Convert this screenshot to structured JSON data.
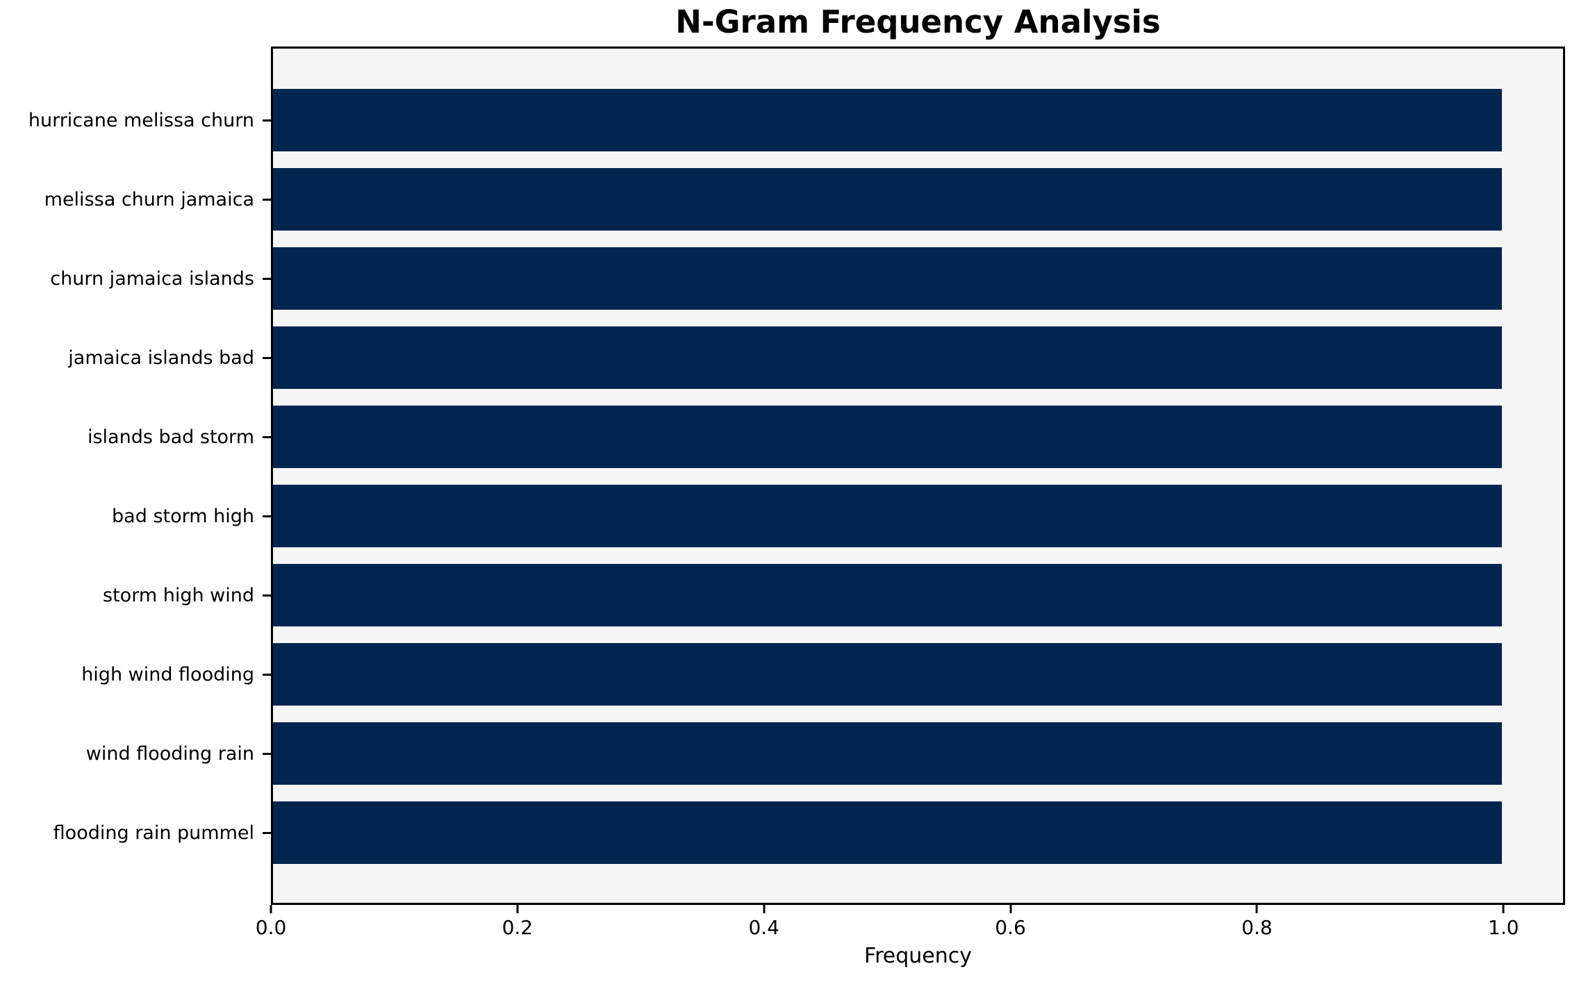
{
  "chart_data": {
    "type": "bar",
    "orientation": "horizontal",
    "title": "N-Gram Frequency Analysis",
    "xlabel": "Frequency",
    "ylabel": "",
    "categories": [
      "hurricane melissa churn",
      "melissa churn jamaica",
      "churn jamaica islands",
      "jamaica islands bad",
      "islands bad storm",
      "bad storm high",
      "storm high wind",
      "high wind flooding",
      "wind flooding rain",
      "flooding rain pummel"
    ],
    "values": [
      1.0,
      1.0,
      1.0,
      1.0,
      1.0,
      1.0,
      1.0,
      1.0,
      1.0,
      1.0
    ],
    "xlim": [
      0.0,
      1.05
    ],
    "xticks": [
      0.0,
      0.2,
      0.4,
      0.6,
      0.8,
      1.0
    ],
    "xtick_labels": [
      "0.0",
      "0.2",
      "0.4",
      "0.6",
      "0.8",
      "1.0"
    ],
    "grid": false,
    "legend": "none",
    "colors": {
      "bar": "#02254f",
      "plot_background": "#f5f5f5",
      "figure_background": "#ffffff",
      "spine": "#000000",
      "text": "#000000"
    }
  }
}
